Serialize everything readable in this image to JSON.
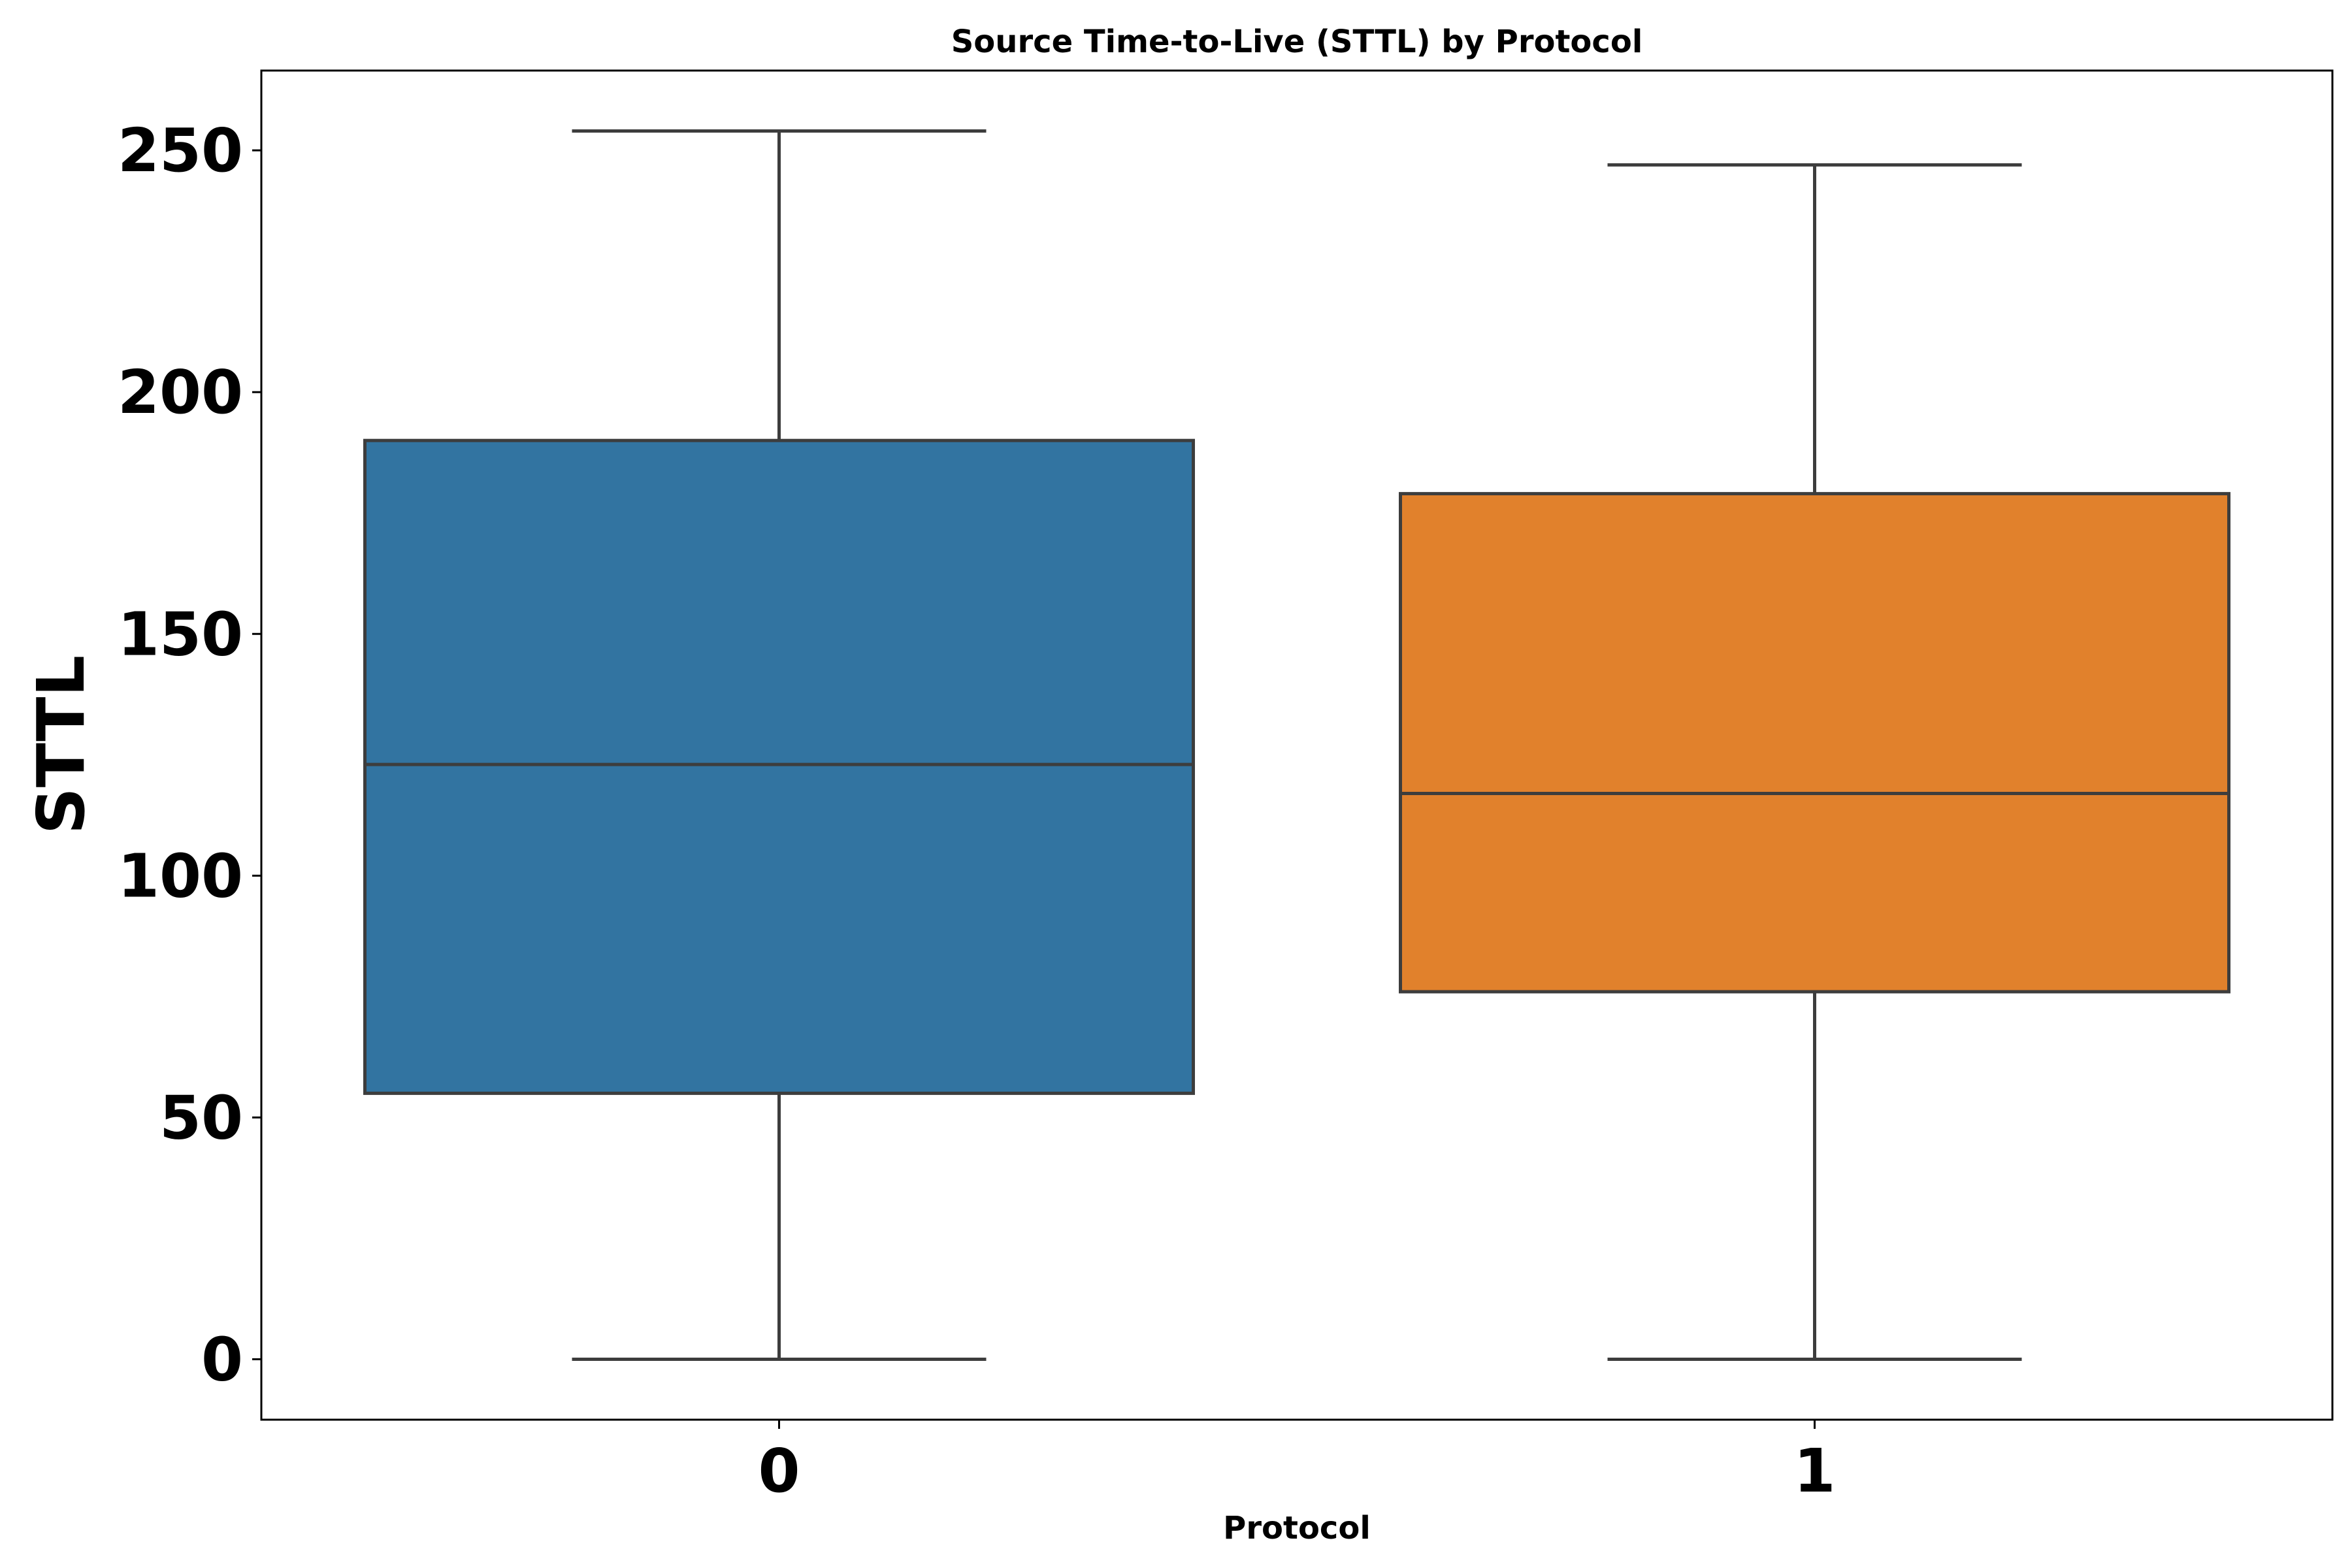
{
  "chart_data": {
    "type": "box",
    "title": "Source Time-to-Live (STTL) by Protocol",
    "xlabel": "Protocol",
    "ylabel": "STTL",
    "ylim": [
      -12.5,
      266.5
    ],
    "yticks": [
      0,
      50,
      100,
      150,
      200,
      250
    ],
    "grid": false,
    "categories": [
      "0",
      "1"
    ],
    "colors": [
      "#3274a1",
      "#e1812c"
    ],
    "boxes": [
      {
        "category": "0",
        "min": 0,
        "q1": 55,
        "median": 123,
        "q3": 190,
        "max": 254
      },
      {
        "category": "1",
        "min": 0,
        "q1": 76,
        "median": 117,
        "q3": 179,
        "max": 247
      }
    ]
  }
}
